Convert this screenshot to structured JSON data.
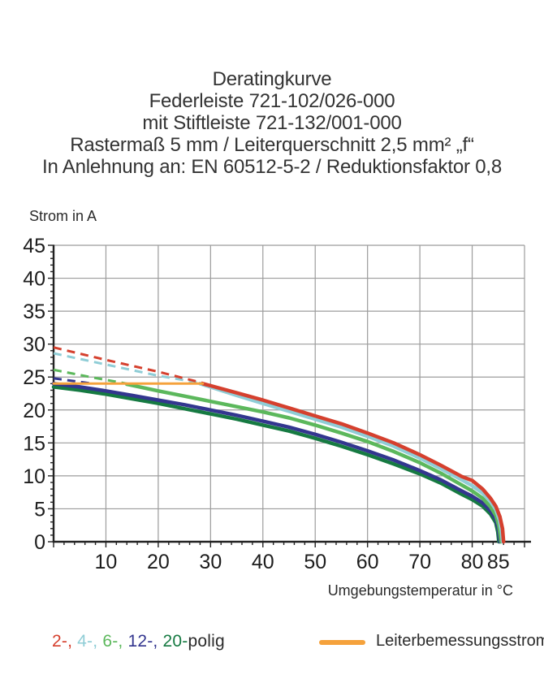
{
  "title": {
    "lines": [
      "Deratingkurve",
      "Federleiste 721-102/026-000",
      "mit Stiftleiste 721-132/001-000",
      "Rastermaß 5 mm / Leiterquerschnitt 2,5 mm² „f“",
      "In Anlehnung an: EN 60512-5-2 / Reduktionsfaktor 0,8"
    ]
  },
  "chart_data": {
    "type": "line",
    "ylabel": "Strom in A",
    "xlabel": "Umgebungstemperatur in °C",
    "xlim": [
      0,
      90
    ],
    "ylim": [
      0,
      45
    ],
    "x_tick_labels": [
      10,
      20,
      30,
      40,
      50,
      60,
      70,
      80,
      85
    ],
    "y_tick_labels": [
      0,
      5,
      10,
      15,
      20,
      25,
      30,
      35,
      40,
      45
    ],
    "x_minor_step": 2,
    "y_minor_step": 1,
    "grid": true,
    "grid_color": "#9c9c9c",
    "axis_color": "#222222",
    "series": [
      {
        "name": "20-polig",
        "color": "#167a42",
        "solid": [
          [
            0,
            23.5
          ],
          [
            5,
            23.0
          ],
          [
            10,
            22.4
          ],
          [
            15,
            21.7
          ],
          [
            20,
            21.0
          ],
          [
            25,
            20.2
          ],
          [
            30,
            19.4
          ],
          [
            35,
            18.6
          ],
          [
            40,
            17.7
          ],
          [
            45,
            16.8
          ],
          [
            50,
            15.7
          ],
          [
            55,
            14.5
          ],
          [
            60,
            13.2
          ],
          [
            65,
            11.8
          ],
          [
            70,
            10.3
          ],
          [
            74,
            8.9
          ],
          [
            78,
            7.2
          ],
          [
            80,
            6.4
          ],
          [
            82,
            5.4
          ],
          [
            83.5,
            4.2
          ],
          [
            84.5,
            2.9
          ],
          [
            84.9,
            1.5
          ],
          [
            85.1,
            0
          ]
        ]
      },
      {
        "name": "12-polig",
        "color": "#33368f",
        "dashed": [
          [
            0,
            24.8
          ],
          [
            7,
            24.05
          ]
        ],
        "solid": [
          [
            0,
            24.0
          ],
          [
            5,
            23.5
          ],
          [
            10,
            22.9
          ],
          [
            15,
            22.2
          ],
          [
            20,
            21.5
          ],
          [
            25,
            20.8
          ],
          [
            30,
            20.0
          ],
          [
            35,
            19.2
          ],
          [
            40,
            18.3
          ],
          [
            45,
            17.4
          ],
          [
            50,
            16.3
          ],
          [
            55,
            15.1
          ],
          [
            60,
            13.8
          ],
          [
            65,
            12.4
          ],
          [
            70,
            10.8
          ],
          [
            74,
            9.4
          ],
          [
            78,
            7.7
          ],
          [
            80,
            6.9
          ],
          [
            82,
            5.9
          ],
          [
            83.5,
            4.7
          ],
          [
            84.5,
            3.4
          ],
          [
            85,
            2.0
          ],
          [
            85.3,
            0
          ]
        ]
      },
      {
        "name": "6-polig",
        "color": "#5cb85c",
        "dashed": [
          [
            0,
            26.1
          ],
          [
            7,
            25.0
          ],
          [
            14,
            24.0
          ]
        ],
        "solid": [
          [
            14,
            23.9
          ],
          [
            20,
            22.9
          ],
          [
            25,
            22.1
          ],
          [
            30,
            21.3
          ],
          [
            35,
            20.5
          ],
          [
            40,
            19.7
          ],
          [
            45,
            18.8
          ],
          [
            50,
            17.7
          ],
          [
            55,
            16.5
          ],
          [
            60,
            15.2
          ],
          [
            65,
            13.7
          ],
          [
            70,
            12.0
          ],
          [
            74,
            10.4
          ],
          [
            78,
            8.6
          ],
          [
            80,
            7.7
          ],
          [
            82,
            6.6
          ],
          [
            83.5,
            5.3
          ],
          [
            84.5,
            4.0
          ],
          [
            85.1,
            2.4
          ],
          [
            85.5,
            0
          ]
        ]
      },
      {
        "name": "4-polig",
        "color": "#8fcdd6",
        "dashed": [
          [
            0,
            28.6
          ],
          [
            10,
            26.9
          ],
          [
            20,
            25.2
          ],
          [
            28,
            24.1
          ]
        ],
        "solid": [
          [
            28,
            24.0
          ],
          [
            35,
            22.2
          ],
          [
            40,
            21.0
          ],
          [
            45,
            19.8
          ],
          [
            50,
            18.6
          ],
          [
            55,
            17.4
          ],
          [
            60,
            16.0
          ],
          [
            65,
            14.5
          ],
          [
            70,
            12.7
          ],
          [
            74,
            11.1
          ],
          [
            78,
            9.4
          ],
          [
            80,
            8.5
          ],
          [
            82,
            7.4
          ],
          [
            83.5,
            6.1
          ],
          [
            84.5,
            4.9
          ],
          [
            85.2,
            3.3
          ],
          [
            85.6,
            1.6
          ],
          [
            85.8,
            0
          ]
        ]
      },
      {
        "name": "2-polig",
        "color": "#d5402e",
        "dashed": [
          [
            0,
            29.5
          ],
          [
            10,
            27.6
          ],
          [
            20,
            25.8
          ],
          [
            28.5,
            24.1
          ]
        ],
        "solid": [
          [
            28.5,
            24.0
          ],
          [
            35,
            22.6
          ],
          [
            40,
            21.5
          ],
          [
            45,
            20.3
          ],
          [
            50,
            19.1
          ],
          [
            55,
            17.9
          ],
          [
            60,
            16.5
          ],
          [
            65,
            15.0
          ],
          [
            70,
            13.2
          ],
          [
            74,
            11.6
          ],
          [
            78,
            9.9
          ],
          [
            80,
            9.3
          ],
          [
            82,
            8.0
          ],
          [
            83.5,
            6.6
          ],
          [
            84.5,
            5.4
          ],
          [
            85.3,
            3.8
          ],
          [
            85.8,
            2.0
          ],
          [
            86,
            0
          ]
        ]
      },
      {
        "name": "Leiterbemessungsstrom",
        "color": "#f5a23c",
        "width": 3,
        "solid": [
          [
            0,
            24
          ],
          [
            28.5,
            24
          ]
        ]
      }
    ]
  },
  "legend": {
    "polig_items": [
      {
        "label": "2-",
        "color": "#d5402e"
      },
      {
        "label": "4-",
        "color": "#8fcdd6"
      },
      {
        "label": "6-",
        "color": "#5cb85c"
      },
      {
        "label": "12-",
        "color": "#33368f"
      },
      {
        "label": "20-",
        "color": "#167a42"
      }
    ],
    "polig_suffix": "polig",
    "rated": {
      "label": "Leiterbemessungsstrom",
      "color": "#f5a23c"
    }
  }
}
